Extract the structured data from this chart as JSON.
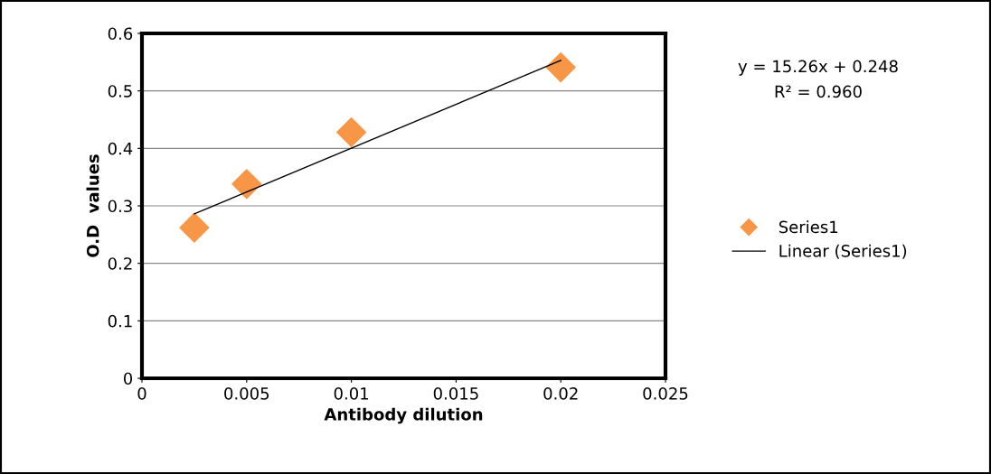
{
  "chart_data": {
    "type": "scatter",
    "xlabel": "Antibody dilution",
    "ylabel": "O.D  values",
    "series": [
      {
        "name": "Series1",
        "color": "#f79646",
        "marker": "diamond",
        "x": [
          0.0025,
          0.005,
          0.01,
          0.02
        ],
        "values": [
          0.262,
          0.338,
          0.428,
          0.541
        ]
      },
      {
        "name": "Linear (Series1)",
        "type": "line",
        "color": "#000000",
        "marker": "none",
        "x": [
          0.0025,
          0.02
        ],
        "values": [
          0.286,
          0.553
        ]
      }
    ],
    "xlim": [
      0,
      0.025
    ],
    "xticks": [
      0,
      0.005,
      0.01,
      0.015,
      0.02,
      0.025
    ],
    "ylim": [
      0,
      0.6
    ],
    "yticks": [
      {
        "value": 0,
        "label": "0"
      },
      0.1,
      0.2,
      0.3,
      0.4,
      0.5,
      0.6
    ],
    "grid": "y",
    "legend": "right",
    "annotations": [
      "y = 15.26x + 0.248",
      "R² = 0.960"
    ]
  }
}
